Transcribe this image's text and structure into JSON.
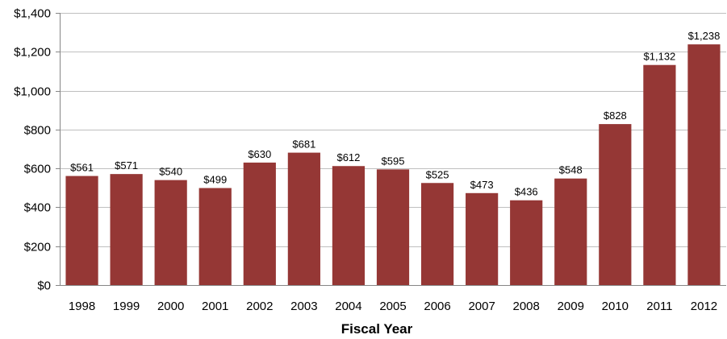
{
  "chart_data": {
    "type": "bar",
    "title": "",
    "xlabel": "Fiscal Year",
    "ylabel": "",
    "categories": [
      "1998",
      "1999",
      "2000",
      "2001",
      "2002",
      "2003",
      "2004",
      "2005",
      "2006",
      "2007",
      "2008",
      "2009",
      "2010",
      "2011",
      "2012"
    ],
    "values": [
      561,
      571,
      540,
      499,
      630,
      681,
      612,
      595,
      525,
      473,
      436,
      548,
      828,
      1132,
      1238
    ],
    "data_labels": [
      "$561",
      "$571",
      "$540",
      "$499",
      "$630",
      "$681",
      "$612",
      "$595",
      "$525",
      "$473",
      "$436",
      "$548",
      "$828",
      "$1,132",
      "$1,238"
    ],
    "ylim": [
      0,
      1400
    ],
    "yticks": [
      0,
      200,
      400,
      600,
      800,
      1000,
      1200,
      1400
    ],
    "ytick_labels": [
      "$0",
      "$200",
      "$400",
      "$600",
      "$800",
      "$1,000",
      "$1,200",
      "$1,400"
    ],
    "grid": true,
    "legend": "none",
    "colors": {
      "bar": "#953735",
      "grid": "#bfbfbf",
      "axis": "#868686"
    }
  }
}
